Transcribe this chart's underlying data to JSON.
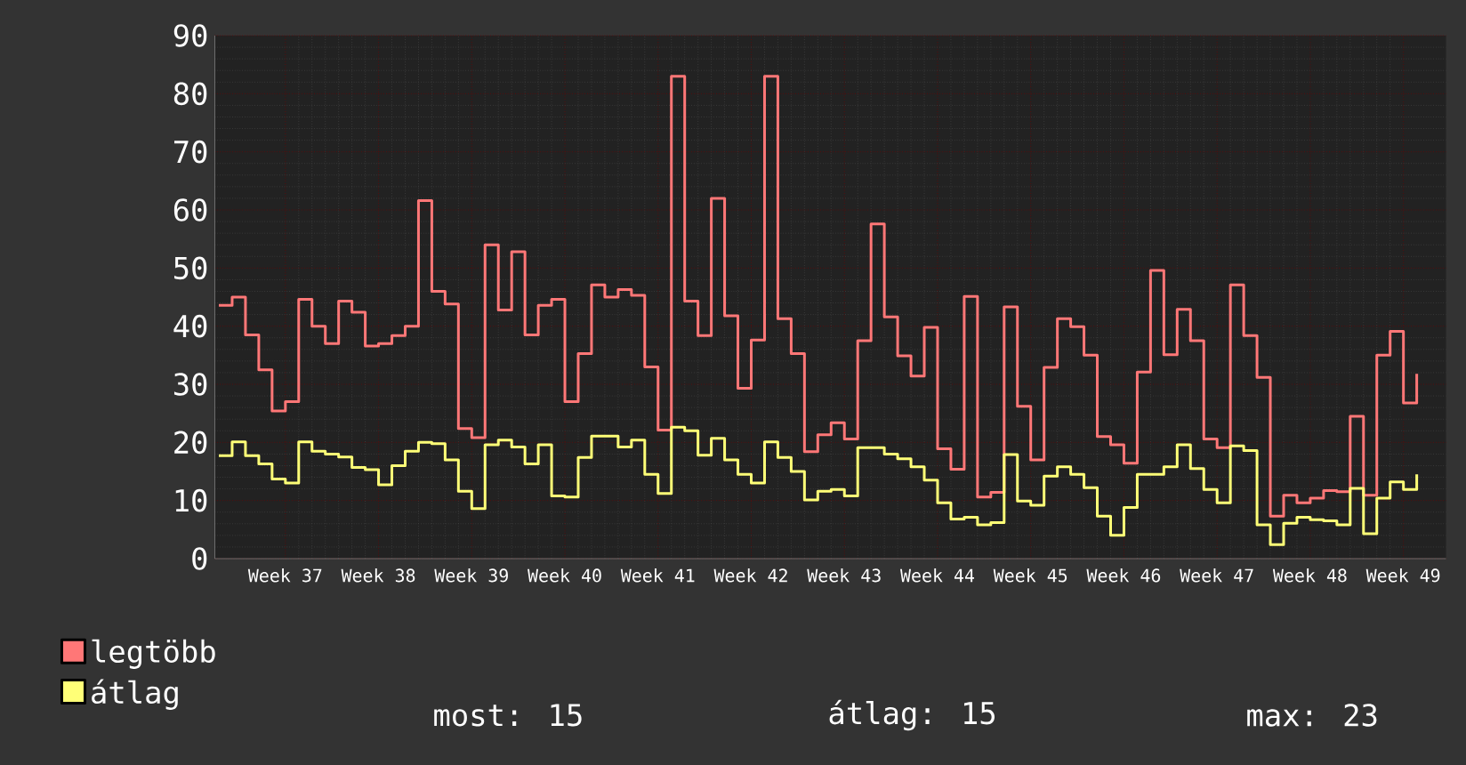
{
  "chart_data": {
    "type": "step",
    "categories": [
      null,
      null,
      null,
      null,
      null,
      "Week 37",
      null,
      null,
      null,
      null,
      null,
      null,
      "Week 38",
      null,
      null,
      null,
      null,
      null,
      null,
      "Week 39",
      null,
      null,
      null,
      null,
      null,
      null,
      "Week 40",
      null,
      null,
      null,
      null,
      null,
      null,
      "Week 41",
      null,
      null,
      null,
      null,
      null,
      null,
      "Week 42",
      null,
      null,
      null,
      null,
      null,
      null,
      "Week 43",
      null,
      null,
      null,
      null,
      null,
      null,
      "Week 44",
      null,
      null,
      null,
      null,
      null,
      null,
      "Week 45",
      null,
      null,
      null,
      null,
      null,
      null,
      "Week 46",
      null,
      null,
      null,
      null,
      null,
      null,
      "Week 47",
      null,
      null,
      null,
      null,
      null,
      null,
      "Week 48",
      null,
      null,
      null,
      null,
      null,
      null,
      "Week 49",
      null
    ],
    "series": [
      {
        "name": "legtöbb",
        "color": "#ff7777",
        "values": [
          43.6,
          45,
          38.5,
          32.5,
          25.4,
          27,
          44.6,
          40,
          37,
          44.3,
          42.4,
          36.6,
          37,
          38.4,
          40,
          61.6,
          46,
          43.8,
          22.4,
          20.8,
          54,
          42.8,
          52.8,
          38.5,
          43.6,
          44.6,
          27,
          35.3,
          47.1,
          45,
          46.3,
          45.3,
          33,
          22.1,
          83,
          44.3,
          38.4,
          62,
          41.8,
          29.3,
          37.6,
          83,
          41.3,
          35.3,
          18.4,
          21.3,
          23.4,
          20.6,
          37.5,
          57.6,
          41.6,
          34.9,
          31.4,
          39.8,
          18.9,
          15.4,
          45.1,
          10.6,
          11.4,
          43.3,
          26.2,
          17,
          32.9,
          41.3,
          39.9,
          35,
          21,
          19.6,
          16.4,
          32.1,
          49.6,
          35.1,
          42.9,
          37.5,
          20.6,
          19.1,
          47.1,
          38.4,
          31.2,
          7.3,
          10.9,
          9.6,
          10.4,
          11.7,
          11.5,
          24.5,
          10.9,
          35,
          39.1,
          26.8,
          31.8
        ]
      },
      {
        "name": "átlag",
        "color": "#ffff77",
        "values": [
          17.7,
          20.1,
          17.7,
          16.3,
          13.7,
          13,
          20.1,
          18.5,
          18,
          17.5,
          15.7,
          15.3,
          12.7,
          16,
          18.5,
          20,
          19.8,
          17,
          11.6,
          8.6,
          19.6,
          20.4,
          19.2,
          16.3,
          19.6,
          10.8,
          10.6,
          17.4,
          21.1,
          21.1,
          19.2,
          20.4,
          14.5,
          11.2,
          22.6,
          22,
          17.8,
          20.7,
          17,
          14.5,
          13,
          20.1,
          17.4,
          15,
          10.1,
          11.6,
          11.9,
          10.8,
          19.1,
          19.1,
          18,
          17.2,
          15.8,
          13.5,
          9.6,
          6.8,
          7.1,
          5.8,
          6.2,
          17.9,
          9.9,
          9.2,
          14.2,
          15.8,
          14.5,
          12.2,
          7.3,
          4,
          8.8,
          14.5,
          14.5,
          15.8,
          19.6,
          15.5,
          11.9,
          9.6,
          19.4,
          18.6,
          5.8,
          2.4,
          6.1,
          7.1,
          6.7,
          6.5,
          5.8,
          12.1,
          4.3,
          10.4,
          13.2,
          11.9,
          14.5
        ]
      }
    ],
    "ylim": [
      0,
      90
    ],
    "yticks": [
      0,
      10,
      20,
      30,
      40,
      50,
      60,
      70,
      80,
      90
    ],
    "grid": true,
    "legend": "bottom left",
    "marker": "none",
    "line_style": "solid",
    "annotations": [
      "most: 15",
      "átlag: 15",
      "max: 23"
    ]
  }
}
